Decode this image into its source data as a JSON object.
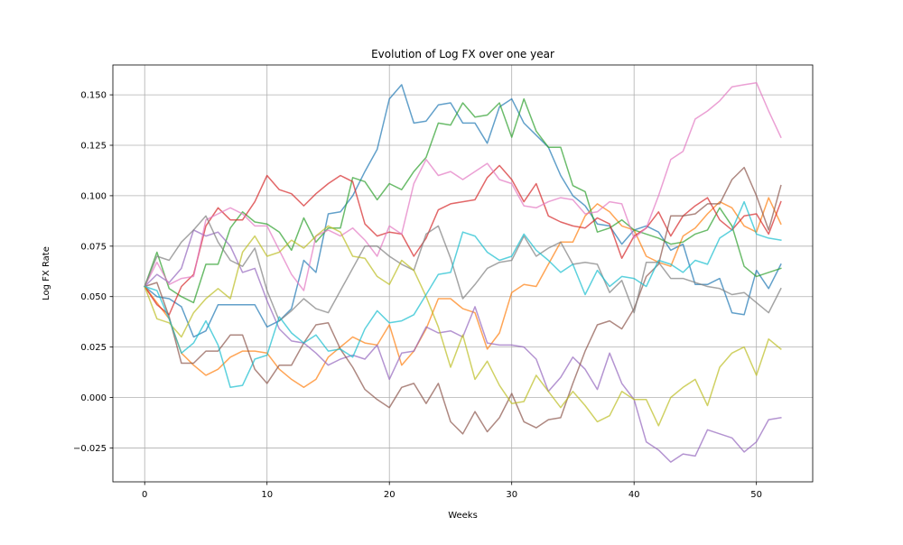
{
  "chart_data": {
    "type": "line",
    "title": "Evolution of Log FX over one year",
    "xlabel": "Weeks",
    "ylabel": "Log FX Rate",
    "xlim": [
      -2.6,
      54.6
    ],
    "ylim": [
      -0.0418,
      0.1648
    ],
    "xticks": [
      0,
      10,
      20,
      30,
      40,
      50
    ],
    "xtick_labels": [
      "0",
      "10",
      "20",
      "30",
      "40",
      "50"
    ],
    "yticks": [
      -0.025,
      0,
      0.025,
      0.05,
      0.075,
      0.1,
      0.125,
      0.15
    ],
    "ytick_labels": [
      "−0.025",
      "0.000",
      "0.025",
      "0.050",
      "0.075",
      "0.100",
      "0.125",
      "0.150"
    ],
    "grid": true,
    "legend": "none",
    "x": [
      0,
      1,
      2,
      3,
      4,
      5,
      6,
      7,
      8,
      9,
      10,
      11,
      12,
      13,
      14,
      15,
      16,
      17,
      18,
      19,
      20,
      21,
      22,
      23,
      24,
      25,
      26,
      27,
      28,
      29,
      30,
      31,
      32,
      33,
      34,
      35,
      36,
      37,
      38,
      39,
      40,
      41,
      42,
      43,
      44,
      45,
      46,
      47,
      48,
      49,
      50,
      51,
      52
    ],
    "series": [
      {
        "color": "#1f77b4",
        "values": [
          0.055,
          0.05,
          0.049,
          0.045,
          0.03,
          0.033,
          0.046,
          0.046,
          0.046,
          0.046,
          0.035,
          0.038,
          0.044,
          0.068,
          0.062,
          0.091,
          0.092,
          0.1,
          0.112,
          0.123,
          0.148,
          0.155,
          0.136,
          0.137,
          0.145,
          0.146,
          0.136,
          0.136,
          0.126,
          0.144,
          0.148,
          0.136,
          0.13,
          0.124,
          0.11,
          0.1,
          0.095,
          0.086,
          0.085,
          0.076,
          0.083,
          0.085,
          0.082,
          0.073,
          0.076,
          0.056,
          0.056,
          0.059,
          0.042,
          0.041,
          0.063,
          0.054,
          0.066
        ]
      },
      {
        "color": "#ff7f0e",
        "values": [
          0.055,
          0.047,
          0.039,
          0.022,
          0.016,
          0.011,
          0.014,
          0.02,
          0.023,
          0.023,
          0.022,
          0.014,
          0.009,
          0.005,
          0.009,
          0.02,
          0.025,
          0.03,
          0.027,
          0.026,
          0.036,
          0.016,
          0.023,
          0.034,
          0.049,
          0.049,
          0.044,
          0.042,
          0.024,
          0.032,
          0.052,
          0.056,
          0.055,
          0.066,
          0.077,
          0.077,
          0.09,
          0.096,
          0.092,
          0.085,
          0.083,
          0.07,
          0.067,
          0.065,
          0.08,
          0.084,
          0.091,
          0.097,
          0.094,
          0.085,
          0.082,
          0.099,
          0.086
        ]
      },
      {
        "color": "#2ca02c",
        "values": [
          0.055,
          0.072,
          0.054,
          0.05,
          0.047,
          0.066,
          0.066,
          0.084,
          0.092,
          0.087,
          0.086,
          0.082,
          0.073,
          0.089,
          0.077,
          0.084,
          0.084,
          0.109,
          0.107,
          0.098,
          0.106,
          0.103,
          0.112,
          0.119,
          0.136,
          0.135,
          0.146,
          0.139,
          0.14,
          0.146,
          0.129,
          0.148,
          0.132,
          0.124,
          0.124,
          0.105,
          0.102,
          0.082,
          0.084,
          0.088,
          0.083,
          0.081,
          0.079,
          0.076,
          0.077,
          0.081,
          0.083,
          0.094,
          0.085,
          0.065,
          0.06,
          0.062,
          0.064
        ]
      },
      {
        "color": "#d62728",
        "values": [
          0.055,
          0.046,
          0.041,
          0.055,
          0.061,
          0.085,
          0.094,
          0.088,
          0.088,
          0.097,
          0.11,
          0.103,
          0.101,
          0.095,
          0.101,
          0.106,
          0.11,
          0.107,
          0.086,
          0.08,
          0.082,
          0.081,
          0.07,
          0.079,
          0.093,
          0.096,
          0.097,
          0.098,
          0.109,
          0.115,
          0.108,
          0.097,
          0.106,
          0.09,
          0.087,
          0.085,
          0.084,
          0.089,
          0.086,
          0.069,
          0.08,
          0.084,
          0.092,
          0.08,
          0.09,
          0.095,
          0.099,
          0.088,
          0.083,
          0.09,
          0.091,
          0.081,
          0.097
        ]
      },
      {
        "color": "#9467bd",
        "values": [
          0.055,
          0.061,
          0.057,
          0.064,
          0.083,
          0.08,
          0.082,
          0.075,
          0.062,
          0.064,
          0.048,
          0.034,
          0.028,
          0.027,
          0.022,
          0.016,
          0.019,
          0.021,
          0.019,
          0.026,
          0.009,
          0.022,
          0.023,
          0.035,
          0.032,
          0.033,
          0.03,
          0.045,
          0.027,
          0.026,
          0.026,
          0.025,
          0.019,
          0.003,
          0.01,
          0.02,
          0.014,
          0.004,
          0.022,
          0.007,
          -0.001,
          -0.022,
          -0.026,
          -0.032,
          -0.028,
          -0.029,
          -0.016,
          -0.018,
          -0.02,
          -0.027,
          -0.022,
          -0.011,
          -0.01
        ]
      },
      {
        "color": "#8c564b",
        "values": [
          0.055,
          0.057,
          0.04,
          0.017,
          0.017,
          0.023,
          0.023,
          0.031,
          0.031,
          0.014,
          0.007,
          0.016,
          0.016,
          0.027,
          0.036,
          0.037,
          0.024,
          0.015,
          0.004,
          -0.001,
          -0.005,
          0.005,
          0.007,
          -0.003,
          0.007,
          -0.012,
          -0.018,
          -0.007,
          -0.017,
          -0.01,
          0.002,
          -0.012,
          -0.015,
          -0.011,
          -0.01,
          0.007,
          0.023,
          0.036,
          0.038,
          0.034,
          0.044,
          0.06,
          0.066,
          0.09,
          0.09,
          0.091,
          0.096,
          0.096,
          0.108,
          0.114,
          0.1,
          0.083,
          0.105
        ]
      },
      {
        "color": "#e377c2",
        "values": [
          0.055,
          0.067,
          0.056,
          0.059,
          0.06,
          0.088,
          0.091,
          0.094,
          0.091,
          0.085,
          0.085,
          0.073,
          0.061,
          0.053,
          0.08,
          0.083,
          0.08,
          0.084,
          0.078,
          0.07,
          0.085,
          0.081,
          0.106,
          0.118,
          0.11,
          0.112,
          0.108,
          0.112,
          0.116,
          0.108,
          0.106,
          0.095,
          0.094,
          0.097,
          0.099,
          0.098,
          0.091,
          0.092,
          0.097,
          0.096,
          0.079,
          0.084,
          0.1,
          0.118,
          0.122,
          0.138,
          0.142,
          0.147,
          0.154,
          0.155,
          0.156,
          0.142,
          0.129
        ]
      },
      {
        "color": "#7f7f7f",
        "values": [
          0.055,
          0.07,
          0.068,
          0.077,
          0.083,
          0.09,
          0.077,
          0.068,
          0.065,
          0.074,
          0.053,
          0.038,
          0.043,
          0.049,
          0.044,
          0.042,
          0.053,
          0.064,
          0.075,
          0.075,
          0.07,
          0.066,
          0.063,
          0.081,
          0.085,
          0.069,
          0.049,
          0.056,
          0.064,
          0.067,
          0.068,
          0.08,
          0.07,
          0.074,
          0.077,
          0.066,
          0.067,
          0.066,
          0.052,
          0.058,
          0.042,
          0.067,
          0.067,
          0.059,
          0.059,
          0.057,
          0.055,
          0.054,
          0.051,
          0.052,
          0.047,
          0.042,
          0.054
        ]
      },
      {
        "color": "#bcbd22",
        "values": [
          0.055,
          0.039,
          0.037,
          0.03,
          0.042,
          0.049,
          0.054,
          0.049,
          0.072,
          0.08,
          0.07,
          0.072,
          0.078,
          0.074,
          0.08,
          0.085,
          0.082,
          0.07,
          0.069,
          0.06,
          0.056,
          0.068,
          0.063,
          0.05,
          0.035,
          0.015,
          0.031,
          0.009,
          0.018,
          0.006,
          -0.003,
          -0.002,
          0.011,
          0.003,
          -0.005,
          0.003,
          -0.004,
          -0.012,
          -0.009,
          0.003,
          -0.001,
          -0.001,
          -0.014,
          0.0,
          0.005,
          0.009,
          -0.004,
          0.015,
          0.022,
          0.025,
          0.011,
          0.029,
          0.024
        ]
      },
      {
        "color": "#17becf",
        "values": [
          0.055,
          0.053,
          0.039,
          0.022,
          0.027,
          0.038,
          0.026,
          0.005,
          0.006,
          0.019,
          0.021,
          0.04,
          0.032,
          0.027,
          0.031,
          0.023,
          0.024,
          0.02,
          0.034,
          0.043,
          0.037,
          0.038,
          0.041,
          0.051,
          0.061,
          0.062,
          0.082,
          0.08,
          0.072,
          0.068,
          0.07,
          0.081,
          0.073,
          0.068,
          0.062,
          0.066,
          0.051,
          0.063,
          0.055,
          0.06,
          0.059,
          0.055,
          0.068,
          0.066,
          0.062,
          0.068,
          0.066,
          0.079,
          0.083,
          0.097,
          0.081,
          0.079,
          0.078
        ]
      }
    ]
  }
}
